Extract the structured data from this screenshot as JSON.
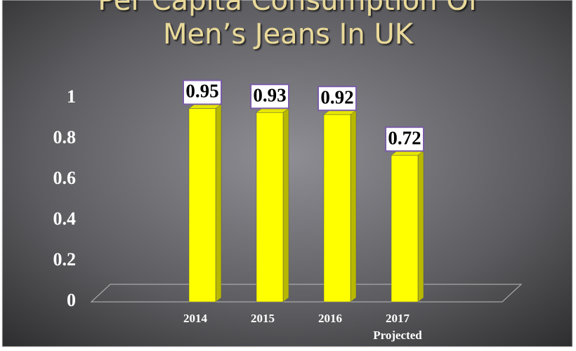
{
  "chart_data": {
    "type": "bar",
    "title": [
      "Per Capita Consumption Of",
      "Men’s Jeans In UK"
    ],
    "categories": [
      "2014",
      "2015",
      "2016",
      "2017"
    ],
    "annotation": "Projected",
    "values": [
      0.95,
      0.93,
      0.92,
      0.72
    ],
    "color": "#ffff00",
    "ylim": [
      0,
      1
    ],
    "yticks": [
      0,
      0.2,
      0.4,
      0.6,
      0.8,
      1
    ],
    "grid": false
  }
}
